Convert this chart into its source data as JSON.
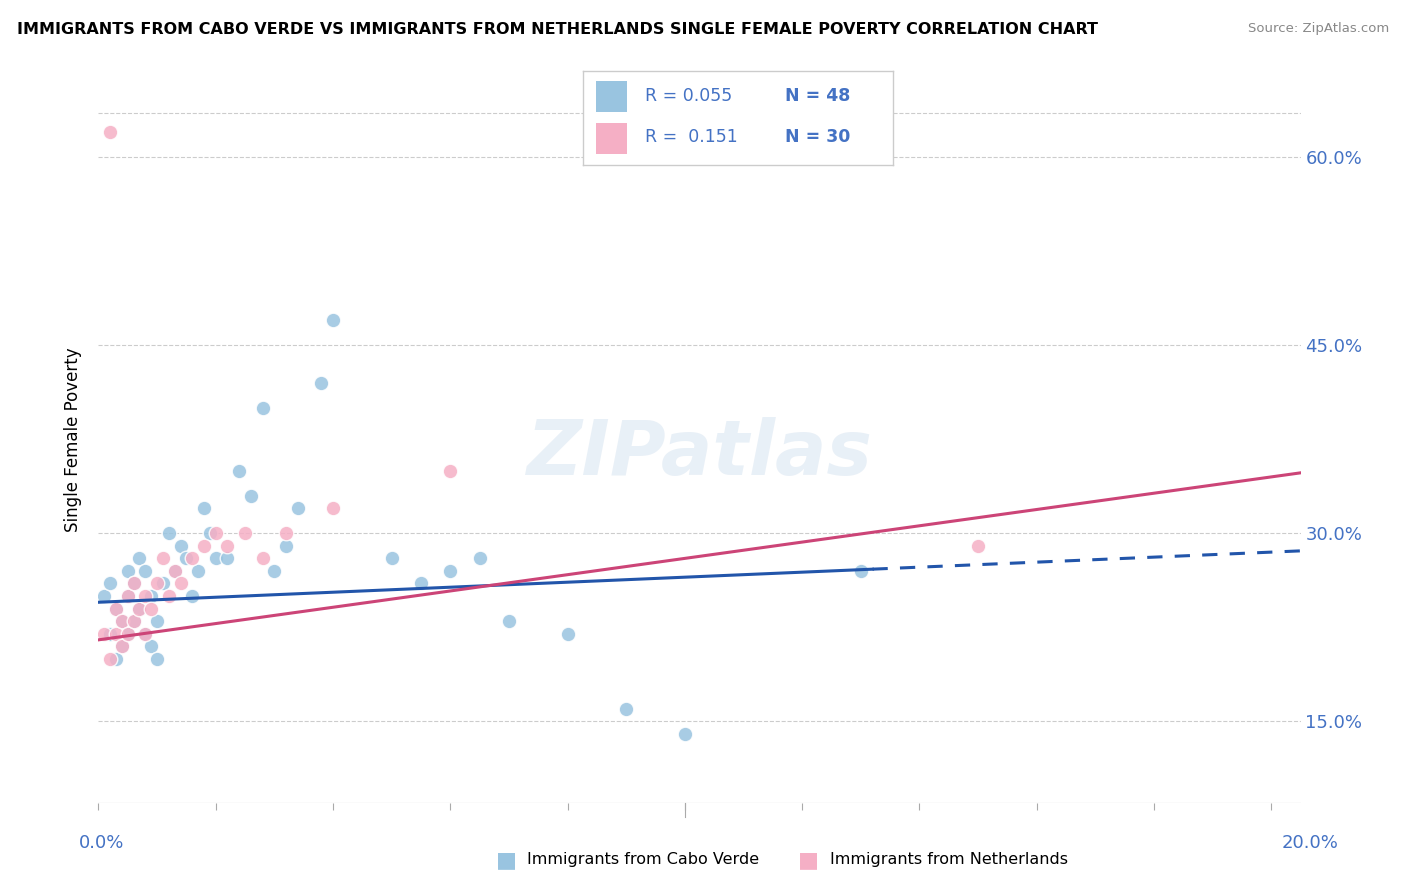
{
  "title": "IMMIGRANTS FROM CABO VERDE VS IMMIGRANTS FROM NETHERLANDS SINGLE FEMALE POVERTY CORRELATION CHART",
  "source": "Source: ZipAtlas.com",
  "ylabel": "Single Female Poverty",
  "watermark": "ZIPatlas",
  "xlim": [
    0.0,
    0.205
  ],
  "ylim": [
    0.085,
    0.665
  ],
  "yticks": [
    0.15,
    0.3,
    0.45,
    0.6
  ],
  "ytick_labels": [
    "15.0%",
    "30.0%",
    "45.0%",
    "60.0%"
  ],
  "blue_scatter_color": "#99c4e0",
  "pink_scatter_color": "#f5afc5",
  "blue_line_color": "#2255aa",
  "pink_line_color": "#cc4477",
  "tick_label_color": "#4472c4",
  "grid_color": "#cccccc",
  "cabo_verde_x": [
    0.001,
    0.002,
    0.002,
    0.003,
    0.003,
    0.004,
    0.004,
    0.005,
    0.005,
    0.005,
    0.006,
    0.006,
    0.007,
    0.007,
    0.008,
    0.008,
    0.009,
    0.009,
    0.01,
    0.01,
    0.011,
    0.012,
    0.013,
    0.014,
    0.015,
    0.016,
    0.017,
    0.018,
    0.019,
    0.02,
    0.022,
    0.024,
    0.026,
    0.028,
    0.03,
    0.032,
    0.034,
    0.038,
    0.04,
    0.05,
    0.055,
    0.06,
    0.065,
    0.07,
    0.08,
    0.09,
    0.1,
    0.13
  ],
  "cabo_verde_y": [
    0.25,
    0.22,
    0.26,
    0.2,
    0.24,
    0.21,
    0.23,
    0.22,
    0.25,
    0.27,
    0.23,
    0.26,
    0.24,
    0.28,
    0.22,
    0.27,
    0.21,
    0.25,
    0.2,
    0.23,
    0.26,
    0.3,
    0.27,
    0.29,
    0.28,
    0.25,
    0.27,
    0.32,
    0.3,
    0.28,
    0.28,
    0.35,
    0.33,
    0.4,
    0.27,
    0.29,
    0.32,
    0.42,
    0.47,
    0.28,
    0.26,
    0.27,
    0.28,
    0.23,
    0.22,
    0.16,
    0.14,
    0.27
  ],
  "netherlands_x": [
    0.001,
    0.002,
    0.003,
    0.003,
    0.004,
    0.004,
    0.005,
    0.005,
    0.006,
    0.006,
    0.007,
    0.008,
    0.008,
    0.009,
    0.01,
    0.011,
    0.012,
    0.013,
    0.014,
    0.016,
    0.018,
    0.02,
    0.022,
    0.025,
    0.028,
    0.032,
    0.04,
    0.06,
    0.15,
    0.002
  ],
  "netherlands_y": [
    0.22,
    0.2,
    0.22,
    0.24,
    0.21,
    0.23,
    0.22,
    0.25,
    0.23,
    0.26,
    0.24,
    0.22,
    0.25,
    0.24,
    0.26,
    0.28,
    0.25,
    0.27,
    0.26,
    0.28,
    0.29,
    0.3,
    0.29,
    0.3,
    0.28,
    0.3,
    0.32,
    0.35,
    0.29,
    0.62
  ],
  "legend_blue_r": "R = 0.055",
  "legend_blue_n": "N = 48",
  "legend_pink_r": "R =  0.151",
  "legend_pink_n": "N = 30"
}
